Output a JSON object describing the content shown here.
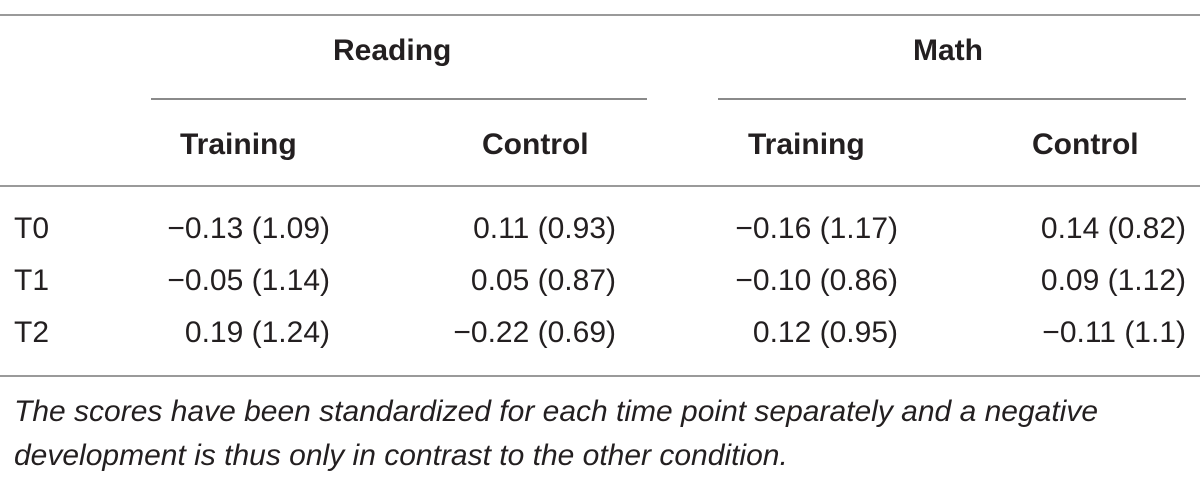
{
  "table": {
    "groups": [
      {
        "label": "Reading",
        "subcolumns": [
          "Training",
          "Control"
        ]
      },
      {
        "label": "Math",
        "subcolumns": [
          "Training",
          "Control"
        ]
      }
    ],
    "rows": [
      {
        "label": "T0",
        "cells": [
          "−0.13 (1.09)",
          "0.11 (0.93)",
          "−0.16 (1.17)",
          "0.14 (0.82)"
        ]
      },
      {
        "label": "T1",
        "cells": [
          "−0.05 (1.14)",
          "0.05 (0.87)",
          "−0.10 (0.86)",
          "0.09 (1.12)"
        ]
      },
      {
        "label": "T2",
        "cells": [
          "0.19 (1.24)",
          "−0.22 (0.69)",
          "0.12 (0.95)",
          "−0.11 (1.1)"
        ]
      }
    ],
    "footnote": "The scores have been standardized for each time point separately and a negative development is thus only in contrast to the other condition."
  }
}
